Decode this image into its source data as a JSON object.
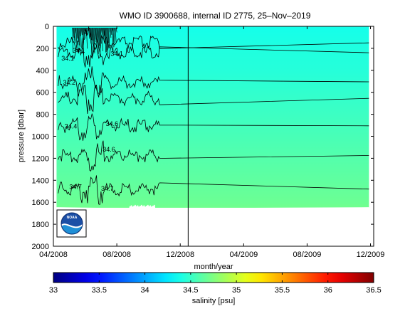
{
  "chart_data": [
    {
      "type": "heatmap",
      "title": "WMO ID 3900688, internal ID 2775, 25–Nov–2019",
      "xlabel": "month/year",
      "ylabel": "pressure [dbar]",
      "x_tick_labels": [
        "04/2008",
        "08/2008",
        "12/2008",
        "04/2009",
        "08/2009",
        "12/2009"
      ],
      "x_tick_positions_months": [
        0,
        4,
        8,
        12,
        16,
        20
      ],
      "x_range_months": [
        0,
        20.2
      ],
      "y_ticks": [
        0,
        200,
        400,
        600,
        800,
        1000,
        1200,
        1400,
        1600,
        1800,
        2000
      ],
      "ylim": [
        2000,
        0
      ],
      "y_reversed": true,
      "data_x_extent_months": [
        0.2,
        19.9
      ],
      "data_bottom_dbar": 1650,
      "vertical_marker_month": 8.5,
      "colormap": "jet",
      "z_range": [
        33,
        36.5
      ],
      "salinity_vs_pressure": [
        {
          "p": 0,
          "s": 34.38
        },
        {
          "p": 100,
          "s": 34.4
        },
        {
          "p": 200,
          "s": 34.42
        },
        {
          "p": 400,
          "s": 34.44
        },
        {
          "p": 600,
          "s": 34.48
        },
        {
          "p": 800,
          "s": 34.52
        },
        {
          "p": 1000,
          "s": 34.56
        },
        {
          "p": 1200,
          "s": 34.6
        },
        {
          "p": 1400,
          "s": 34.64
        },
        {
          "p": 1600,
          "s": 34.68
        },
        {
          "p": 1650,
          "s": 34.7
        }
      ],
      "contour_levels_dbar": [
        150,
        240,
        505,
        655,
        905,
        1175,
        1480
      ],
      "contour_labels": [
        {
          "text": "34.1",
          "month": 1.6,
          "p": 240
        },
        {
          "text": "34.1",
          "month": 4.0,
          "p": 270
        },
        {
          "text": "34.1",
          "month": 0.9,
          "p": 310
        },
        {
          "text": "34.2",
          "month": 1.0,
          "p": 530
        },
        {
          "text": "34.4",
          "month": 1.1,
          "p": 930
        },
        {
          "text": "34.6",
          "month": 3.7,
          "p": 905
        },
        {
          "text": "34.6",
          "month": 3.5,
          "p": 1140
        },
        {
          "text": "34.7",
          "month": 1.4,
          "p": 1480
        },
        {
          "text": "34.7",
          "month": 3.4,
          "p": 1495
        }
      ]
    },
    {
      "type": "colorbar",
      "xlabel": "salinity [psu]",
      "tick_labels": [
        "33",
        "33.5",
        "34",
        "34.5",
        "35",
        "35.5",
        "36",
        "36.5"
      ],
      "ticks": [
        33,
        33.5,
        34,
        34.5,
        35,
        35.5,
        36,
        36.5
      ],
      "xlim": [
        33,
        36.5
      ]
    }
  ],
  "logo": {
    "label": "NOAA",
    "icon": "noaa-logo"
  }
}
